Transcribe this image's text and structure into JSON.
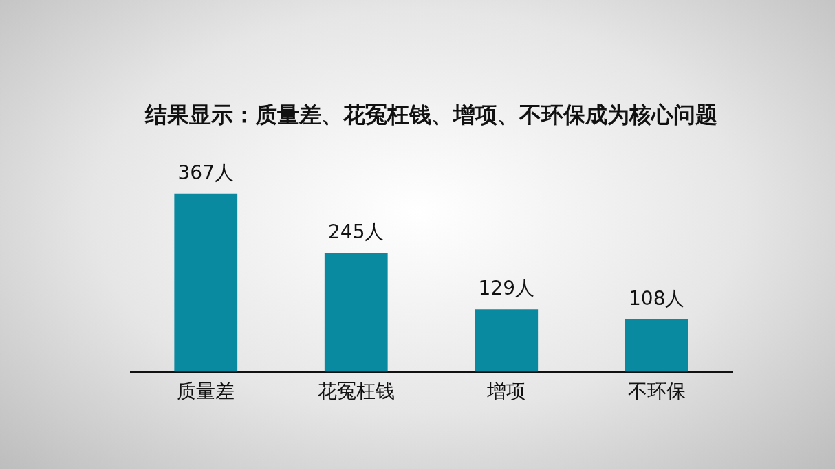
{
  "chart_data": {
    "type": "bar",
    "title": "结果显示：质量差、花冤枉钱、增项、不环保成为核心问题",
    "categories": [
      "质量差",
      "花冤枉钱",
      "增项",
      "不环保"
    ],
    "values": [
      367,
      245,
      129,
      108
    ],
    "value_labels": [
      "367人",
      "245人",
      "129人",
      "108人"
    ],
    "color": "#0a8aa0",
    "grid": false,
    "legend": false,
    "tick_labels": "x"
  }
}
